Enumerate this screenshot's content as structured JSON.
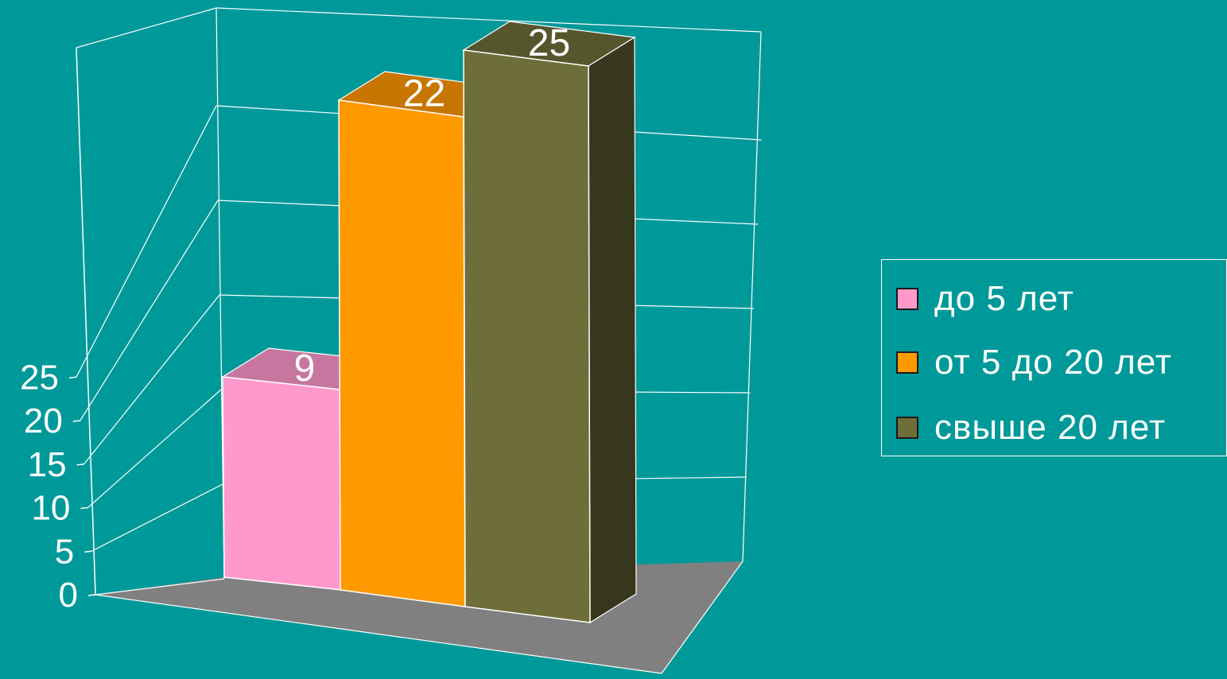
{
  "chart_data": {
    "type": "bar",
    "style": "3d-column",
    "categories": [
      ""
    ],
    "series": [
      {
        "name": "до 5 лет",
        "values": [
          9
        ],
        "color": "#ff99cc"
      },
      {
        "name": "от 5 до 20 лет",
        "values": [
          22
        ],
        "color": "#ff9900"
      },
      {
        "name": "свыше 20 лет",
        "values": [
          25
        ],
        "color": "#6e6e3a"
      }
    ],
    "data_labels": [
      "9",
      "22",
      "25"
    ],
    "title": "",
    "xlabel": "",
    "ylabel": "",
    "ylim": [
      0,
      25
    ],
    "yticks": [
      "0",
      "5",
      "10",
      "15",
      "20",
      "25"
    ],
    "grid": true,
    "legend": "right",
    "colors": {
      "background": "#009999",
      "floor": "#808080",
      "grid": "#ffffff",
      "text": "#ffffff"
    }
  }
}
